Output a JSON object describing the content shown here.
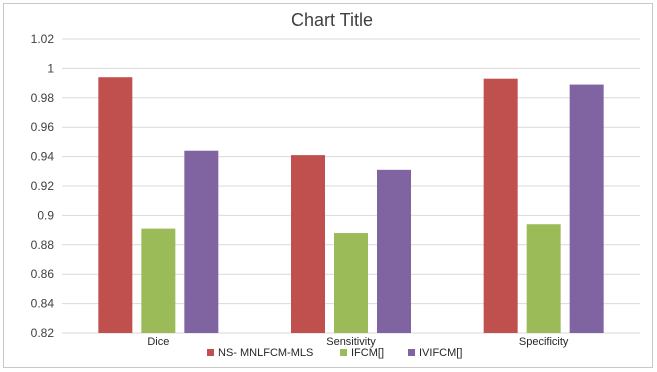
{
  "chart_data": {
    "type": "bar",
    "title": "Chart Title",
    "categories": [
      "Dice",
      "Sensitivity",
      "Specificity"
    ],
    "series": [
      {
        "name": "NS- MNLFCM-MLS",
        "color": "#c0504d",
        "values": [
          0.994,
          0.941,
          0.993
        ]
      },
      {
        "name": "IFCM[]",
        "color": "#9bbb59",
        "values": [
          0.891,
          0.888,
          0.894
        ]
      },
      {
        "name": "IVIFCM[]",
        "color": "#8064a2",
        "values": [
          0.944,
          0.931,
          0.989
        ]
      }
    ],
    "yticks": [
      "0.82",
      "0.84",
      "0.86",
      "0.88",
      "0.9",
      "0.92",
      "0.94",
      "0.96",
      "0.98",
      "1",
      "1.02"
    ],
    "ylim": [
      0.82,
      1.02
    ],
    "grid": true,
    "legend_position": "bottom"
  }
}
